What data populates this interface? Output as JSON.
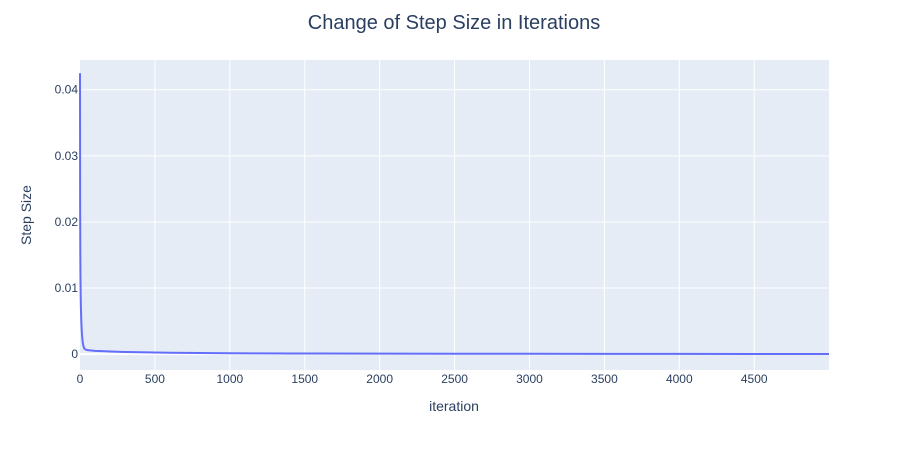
{
  "chart_data": {
    "type": "line",
    "title": "Change of Step Size in Iterations",
    "xlabel": "iteration",
    "ylabel": "Step Size",
    "xlim": [
      0,
      4999
    ],
    "ylim": [
      -0.0024,
      0.0445
    ],
    "x_ticks": [
      0,
      500,
      1000,
      1500,
      2000,
      2500,
      3000,
      3500,
      4000,
      4500
    ],
    "y_ticks": [
      0,
      0.01,
      0.02,
      0.03,
      0.04
    ],
    "x_tick_labels": [
      "0",
      "500",
      "1000",
      "1500",
      "2000",
      "2500",
      "3000",
      "3500",
      "4000",
      "4500"
    ],
    "y_tick_labels": [
      "0",
      "0.01",
      "0.02",
      "0.03",
      "0.04"
    ],
    "grid": true,
    "series": [
      {
        "color": "#636efa",
        "x": [
          0,
          1,
          2,
          3,
          4,
          5,
          6,
          8,
          10,
          12,
          15,
          18,
          22,
          26,
          30,
          40,
          50,
          75,
          100,
          150,
          200,
          300,
          400,
          500,
          600,
          700,
          800,
          1000,
          1200,
          1400,
          1600,
          2000,
          2500,
          3000,
          3500,
          4000,
          4500,
          4999
        ],
        "y": [
          0.0425,
          0.022,
          0.0155,
          0.012,
          0.0098,
          0.0082,
          0.0071,
          0.0055,
          0.0043,
          0.0034,
          0.0025,
          0.0018,
          0.0013,
          0.001,
          0.0008,
          0.00068,
          0.0006,
          0.00055,
          0.0005,
          0.00045,
          0.0004,
          0.00033,
          0.00028,
          0.00024,
          0.00021,
          0.00019,
          0.00017,
          0.00014,
          0.00012,
          0.0001,
          9e-05,
          7e-05,
          6e-05,
          5e-05,
          4e-05,
          4e-05,
          3e-05,
          3e-05
        ]
      }
    ]
  },
  "colors": {
    "plot_background": "#e5ecf6",
    "grid": "#ffffff",
    "text": "#2a3f5f",
    "line": "#636efa"
  }
}
